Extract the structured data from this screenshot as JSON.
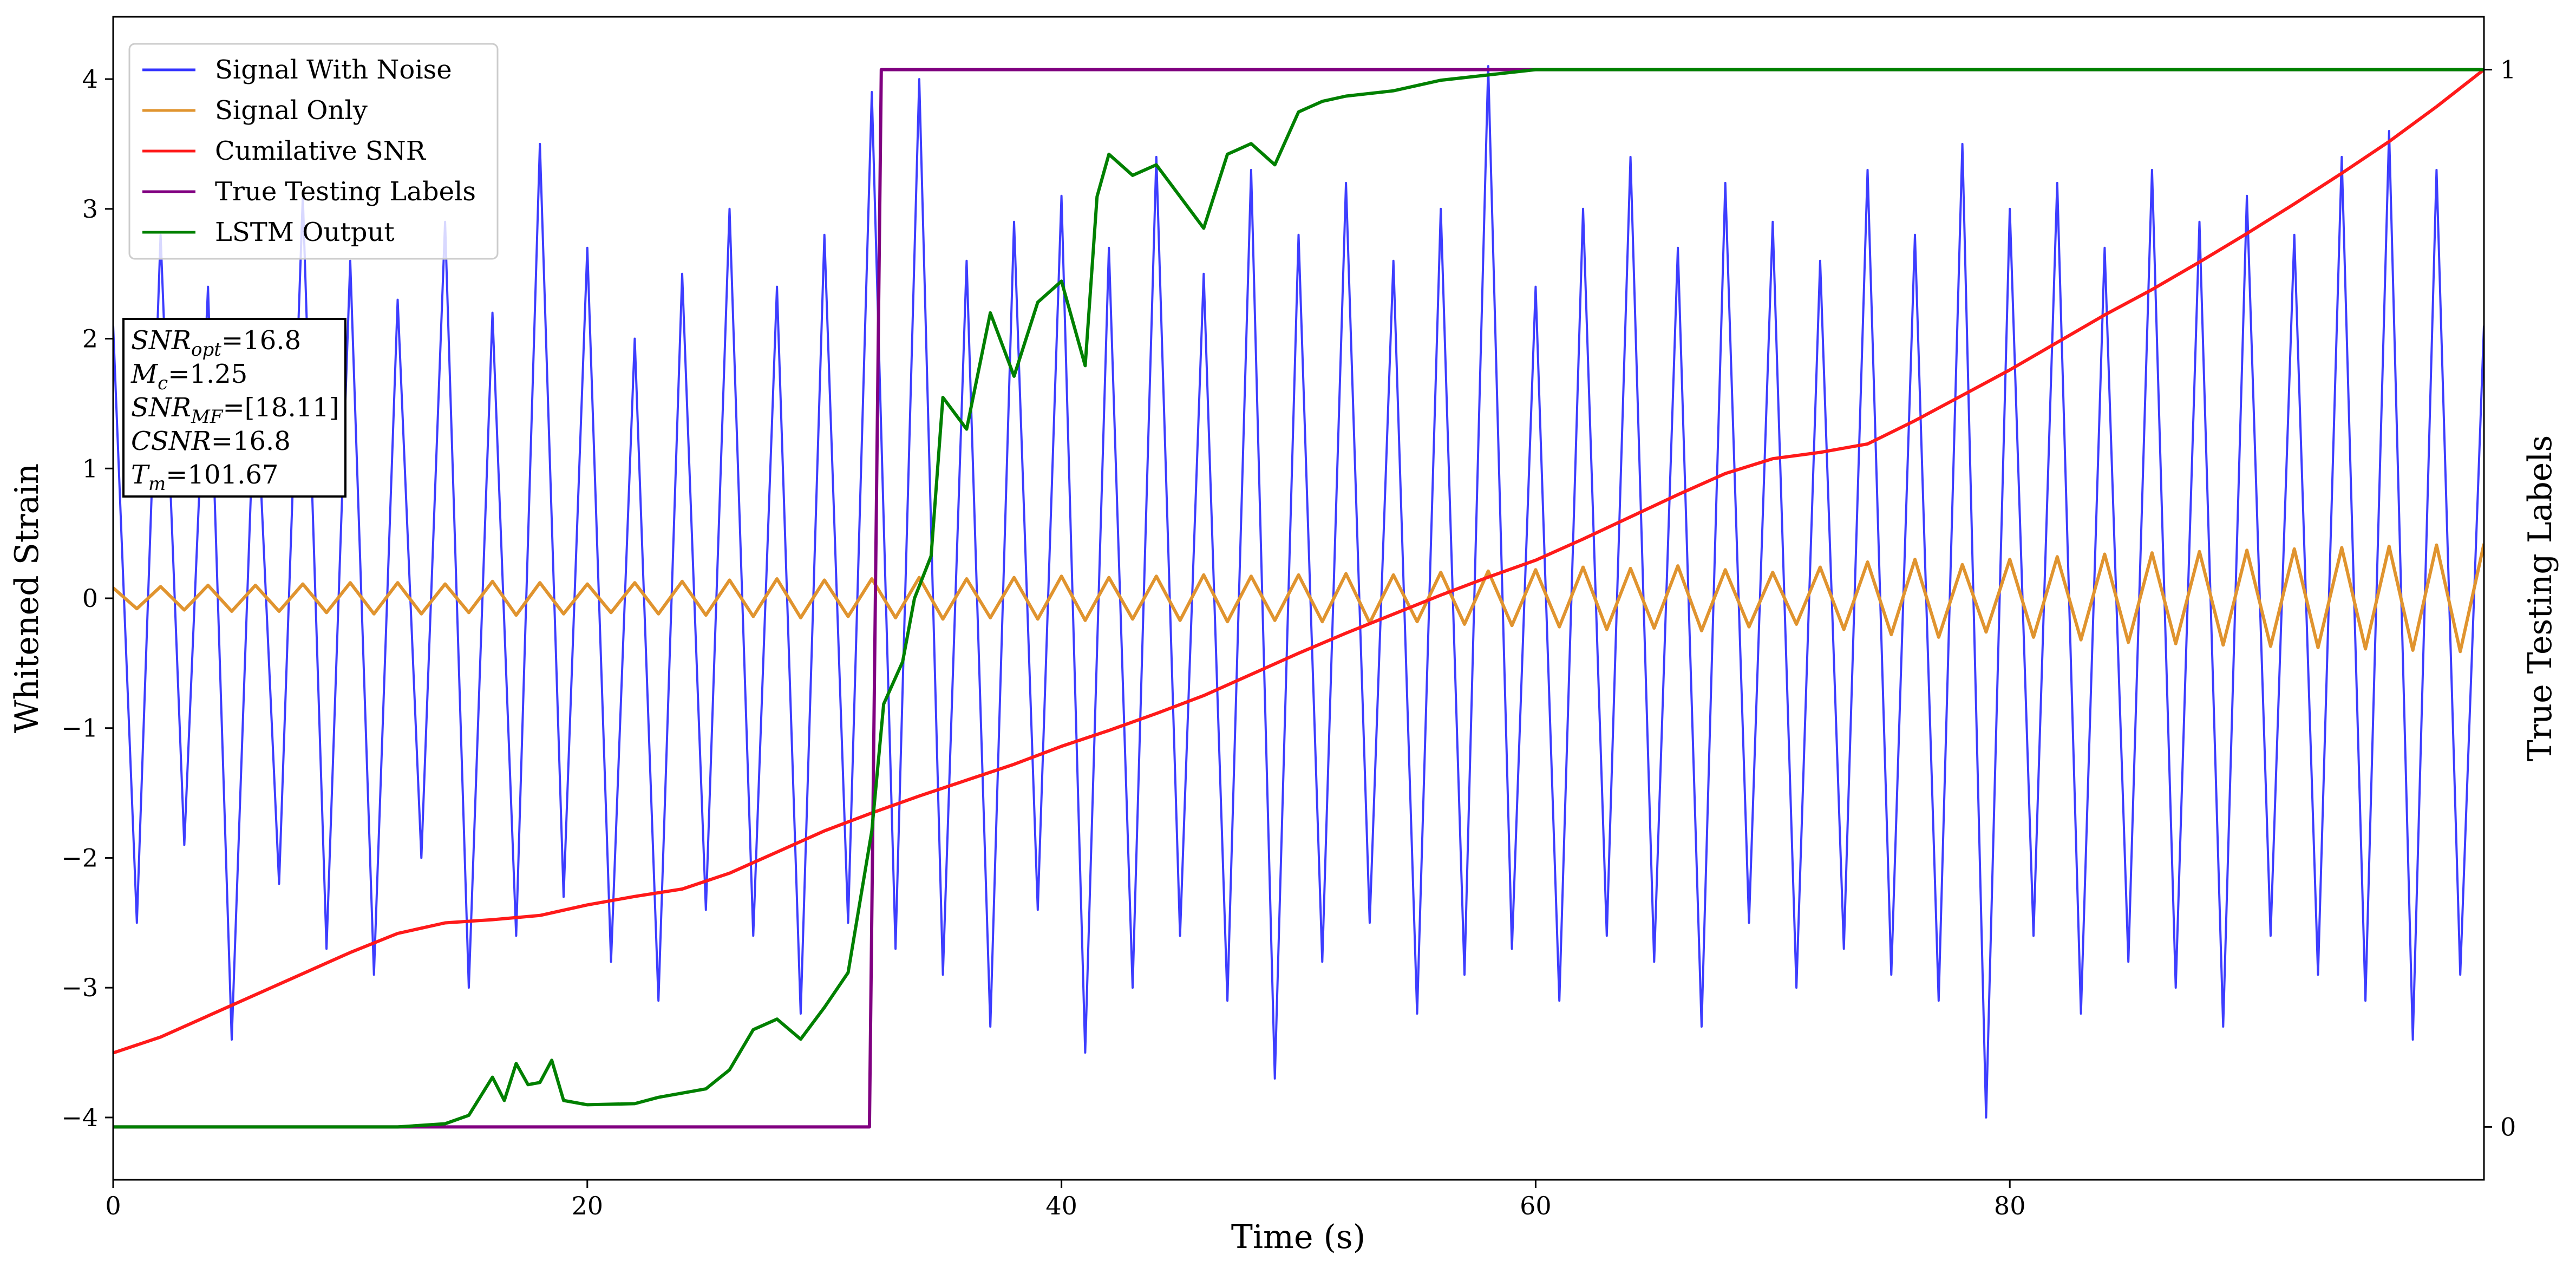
{
  "chart_data": {
    "type": "line",
    "xlabel": "Time (s)",
    "ylabel": "Whitened Strain",
    "y2label": "True Testing Labels",
    "x": [
      0,
      1,
      2,
      3,
      4,
      5,
      6,
      7,
      8,
      9,
      10,
      11,
      12,
      13,
      14,
      15,
      16,
      17,
      18,
      19,
      20,
      21,
      22,
      23,
      24,
      25,
      26,
      27,
      28,
      29,
      30,
      31,
      32,
      33,
      34,
      35,
      36,
      37,
      38,
      39,
      40,
      41,
      42,
      43,
      44,
      45,
      46,
      47,
      48,
      49,
      50,
      51,
      52,
      53,
      54,
      55,
      56,
      57,
      58,
      59,
      60,
      61,
      62,
      63,
      64,
      65,
      66,
      67,
      68,
      69,
      70,
      71,
      72,
      73,
      74,
      75,
      76,
      77,
      78,
      79,
      80,
      81,
      82,
      83,
      84,
      85,
      86,
      87,
      88,
      89,
      90,
      91,
      92,
      93,
      94,
      95,
      96,
      97,
      98,
      99,
      100
    ],
    "xlim": [
      0,
      100
    ],
    "ylim": [
      -4.48,
      4.48
    ],
    "y2lim": [
      -0.05,
      1.05
    ],
    "xticks": [
      0,
      20,
      40,
      60,
      80
    ],
    "yticks": [
      {
        "value": -4,
        "label": "−4"
      },
      {
        "value": -3,
        "label": "−3"
      },
      {
        "value": -2,
        "label": "−2"
      },
      {
        "value": -1,
        "label": "−1"
      },
      0,
      1,
      2,
      3,
      4
    ],
    "y2ticks": [
      0,
      1
    ],
    "legend": "upper left",
    "series": [
      {
        "name": "Signal With Noise",
        "color": "#3333ff",
        "axis": "y",
        "values": [
          2.1,
          -2.5,
          2.8,
          -1.9,
          2.4,
          -3.4,
          1.8,
          -2.2,
          3.1,
          -2.7,
          2.6,
          -2.9,
          2.3,
          -2.0,
          2.9,
          -3.0,
          2.2,
          -2.6,
          3.5,
          -2.3,
          2.7,
          -2.8,
          2.0,
          -3.1,
          2.5,
          -2.4,
          3.0,
          -2.6,
          2.4,
          -3.2,
          2.8,
          -2.5,
          3.9,
          -2.7,
          4.0,
          -2.9,
          2.6,
          -3.3,
          2.9,
          -2.4,
          3.1,
          -3.5,
          2.7,
          -3.0,
          3.4,
          -2.6,
          2.5,
          -3.1,
          3.3,
          -3.7,
          2.8,
          -2.8,
          3.2,
          -2.5,
          2.6,
          -3.2,
          3.0,
          -2.9,
          4.1,
          -2.7,
          2.4,
          -3.1,
          3.0,
          -2.6,
          3.4,
          -2.8,
          2.7,
          -3.3,
          3.2,
          -2.5,
          2.9,
          -3.0,
          2.6,
          -2.7,
          3.3,
          -2.9,
          2.8,
          -3.1,
          3.5,
          -4.0,
          3.0,
          -2.6,
          3.2,
          -3.2,
          2.7,
          -2.8,
          3.3,
          -3.0,
          2.9,
          -3.3,
          3.1,
          -2.6,
          2.8,
          -2.9,
          3.4,
          -3.1,
          3.6,
          -3.4,
          3.3,
          -2.9,
          2.1
        ]
      },
      {
        "name": "Signal Only",
        "color": "#e0942f",
        "axis": "y",
        "values": [
          0.08,
          -0.08,
          0.09,
          -0.09,
          0.1,
          -0.1,
          0.1,
          -0.1,
          0.11,
          -0.11,
          0.12,
          -0.12,
          0.12,
          -0.12,
          0.11,
          -0.11,
          0.13,
          -0.13,
          0.12,
          -0.12,
          0.11,
          -0.11,
          0.12,
          -0.12,
          0.13,
          -0.13,
          0.14,
          -0.14,
          0.15,
          -0.15,
          0.14,
          -0.14,
          0.15,
          -0.15,
          0.16,
          -0.16,
          0.15,
          -0.15,
          0.16,
          -0.16,
          0.17,
          -0.17,
          0.16,
          -0.16,
          0.17,
          -0.17,
          0.18,
          -0.18,
          0.17,
          -0.17,
          0.18,
          -0.18,
          0.19,
          -0.19,
          0.18,
          -0.18,
          0.2,
          -0.2,
          0.21,
          -0.21,
          0.22,
          -0.22,
          0.24,
          -0.24,
          0.23,
          -0.23,
          0.25,
          -0.25,
          0.22,
          -0.22,
          0.2,
          -0.2,
          0.24,
          -0.24,
          0.28,
          -0.28,
          0.3,
          -0.3,
          0.26,
          -0.26,
          0.3,
          -0.3,
          0.32,
          -0.32,
          0.34,
          -0.34,
          0.35,
          -0.35,
          0.36,
          -0.36,
          0.37,
          -0.37,
          0.38,
          -0.38,
          0.39,
          -0.39,
          0.4,
          -0.4,
          0.41,
          -0.41,
          0.42
        ]
      },
      {
        "name": "Cumilative SNR",
        "color": "#ff1a1a",
        "axis": "y2",
        "x": [
          0,
          2,
          4,
          6,
          8,
          10,
          12,
          14,
          16,
          18,
          20,
          22,
          24,
          26,
          28,
          30,
          32,
          34,
          36,
          38,
          40,
          42,
          44,
          46,
          48,
          50,
          52,
          54,
          56,
          58,
          60,
          62,
          64,
          66,
          68,
          70,
          72,
          74,
          76,
          78,
          80,
          82,
          84,
          86,
          88,
          90,
          92,
          94,
          96,
          98,
          100
        ],
        "values": [
          0.07,
          0.085,
          0.105,
          0.125,
          0.145,
          0.165,
          0.183,
          0.193,
          0.196,
          0.2,
          0.21,
          0.218,
          0.225,
          0.24,
          0.26,
          0.28,
          0.297,
          0.313,
          0.328,
          0.343,
          0.36,
          0.375,
          0.391,
          0.408,
          0.428,
          0.448,
          0.467,
          0.485,
          0.503,
          0.52,
          0.536,
          0.556,
          0.577,
          0.598,
          0.618,
          0.632,
          0.638,
          0.646,
          0.668,
          0.692,
          0.716,
          0.742,
          0.768,
          0.792,
          0.818,
          0.845,
          0.873,
          0.902,
          0.932,
          0.965,
          1.0
        ]
      },
      {
        "name": "True Testing Labels",
        "color": "#800080",
        "axis": "y2",
        "x": [
          0,
          31.9,
          32.4,
          100
        ],
        "values": [
          0,
          0,
          1,
          1
        ]
      },
      {
        "name": "LSTM Output",
        "color": "#008000",
        "axis": "y2",
        "x": [
          0,
          12,
          14,
          15,
          16,
          16.5,
          17,
          17.5,
          18,
          18.5,
          19,
          20,
          22,
          23,
          25,
          26,
          27,
          28,
          29,
          30,
          31,
          32,
          32.5,
          33.3,
          33.8,
          34.5,
          35,
          36,
          37,
          38,
          39,
          40,
          41,
          41.5,
          42,
          43,
          44,
          45,
          46,
          47,
          48,
          49,
          50,
          51,
          52,
          54,
          56,
          60,
          100
        ],
        "values": [
          0,
          0,
          0.003,
          0.011,
          0.047,
          0.025,
          0.06,
          0.04,
          0.042,
          0.063,
          0.025,
          0.021,
          0.022,
          0.028,
          0.036,
          0.054,
          0.092,
          0.102,
          0.083,
          0.113,
          0.146,
          0.28,
          0.4,
          0.44,
          0.5,
          0.54,
          0.69,
          0.66,
          0.77,
          0.71,
          0.78,
          0.8,
          0.72,
          0.88,
          0.92,
          0.9,
          0.91,
          0.88,
          0.85,
          0.92,
          0.93,
          0.91,
          0.96,
          0.97,
          0.975,
          0.98,
          0.99,
          1.0,
          1.0
        ]
      }
    ],
    "annotation": [
      [
        "SNR",
        "opt",
        "=16.8"
      ],
      [
        "M",
        "c",
        "=1.25"
      ],
      [
        "SNR",
        "MF",
        "=[18.11]"
      ],
      [
        "CSNR",
        "=16.8"
      ],
      [
        "T",
        "m",
        "=101.67"
      ]
    ]
  }
}
